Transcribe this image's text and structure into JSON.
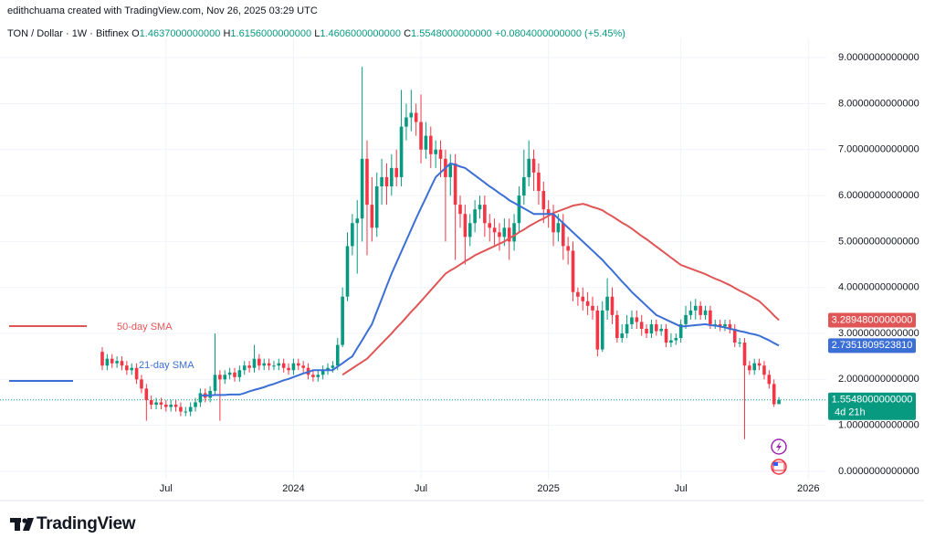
{
  "header": {
    "attribution": "edithchuama created with TradingView.com, Nov 26, 2025 03:29 UTC"
  },
  "chart_data": {
    "type": "candlestick",
    "title": "TON / Dollar · 1W · Bitfinex",
    "ohlc_prefixes": [
      "O",
      "H",
      "L",
      "C"
    ],
    "ohlc_labels": {
      "open": "1.4637000000000",
      "high": "1.6156000000000",
      "low": "1.4606000000000",
      "close": "1.5548000000000",
      "change": "+0.0804000000000",
      "change_percent": "(+5.45%)"
    },
    "categories": [
      null,
      null,
      null,
      null,
      null,
      null,
      null,
      null,
      null,
      null,
      null,
      null,
      null,
      "Jul",
      null,
      null,
      null,
      null,
      null,
      null,
      null,
      null,
      null,
      null,
      null,
      null,
      null,
      null,
      null,
      null,
      null,
      null,
      null,
      null,
      null,
      null,
      null,
      null,
      null,
      "2024",
      null,
      null,
      null,
      null,
      null,
      null,
      null,
      null,
      null,
      null,
      null,
      null,
      null,
      null,
      null,
      null,
      null,
      null,
      null,
      null,
      null,
      null,
      null,
      null,
      null,
      "Jul",
      null,
      null,
      null,
      null,
      null,
      null,
      null,
      null,
      null,
      null,
      null,
      null,
      null,
      null,
      null,
      null,
      null,
      null,
      null,
      null,
      null,
      null,
      null,
      null,
      null,
      "2025",
      null,
      null,
      null,
      null,
      null,
      null,
      null,
      null,
      null,
      null,
      null,
      null,
      null,
      null,
      null,
      null,
      null,
      null,
      null,
      null,
      null,
      null,
      null,
      null,
      null,
      null,
      "Jul",
      null,
      null,
      null,
      null,
      null,
      null,
      null,
      null,
      null,
      null,
      null,
      null,
      null,
      null,
      null,
      null,
      null,
      null,
      null,
      null,
      null,
      null,
      null,
      null,
      null,
      "2026",
      null,
      null,
      null,
      null
    ],
    "open": [
      2.6,
      2.3,
      2.45,
      2.35,
      2.4,
      2.3,
      2.2,
      2.25,
      2.0,
      1.8,
      1.55,
      1.45,
      1.5,
      1.45,
      1.4,
      1.45,
      1.4,
      1.3,
      1.3,
      1.4,
      1.5,
      1.7,
      1.6,
      1.75,
      2.1,
      2.0,
      2.1,
      2.15,
      2.05,
      2.2,
      2.3,
      2.25,
      2.45,
      2.3,
      2.35,
      2.3,
      2.3,
      2.35,
      2.25,
      2.2,
      2.35,
      2.3,
      2.25,
      2.1,
      2.05,
      2.1,
      2.2,
      2.25,
      2.3,
      2.75,
      3.8,
      4.9,
      5.4,
      5.5,
      6.8,
      5.8,
      5.3,
      6.2,
      6.4,
      6.2,
      6.6,
      6.4,
      7.5,
      7.7,
      7.8,
      7.6,
      7.0,
      7.3,
      6.9,
      7.0,
      6.8,
      6.4,
      6.7,
      5.8,
      5.6,
      5.1,
      5.4,
      5.7,
      5.8,
      5.4,
      5.3,
      5.2,
      5.1,
      5.3,
      5.0,
      5.4,
      6.0,
      6.4,
      6.8,
      6.5,
      6.1,
      5.7,
      5.6,
      5.2,
      5.4,
      4.9,
      4.8,
      3.9,
      3.8,
      3.7,
      3.6,
      3.5,
      2.65,
      3.5,
      3.8,
      3.4,
      2.9,
      3.0,
      3.2,
      3.35,
      3.25,
      3.1,
      3.0,
      3.2,
      3.05,
      3.1,
      2.8,
      2.85,
      2.9,
      3.2,
      3.4,
      3.5,
      3.6,
      3.4,
      3.5,
      3.2,
      3.2,
      3.15,
      3.2,
      3.1,
      2.8,
      2.8,
      2.3,
      2.2,
      2.35,
      2.3,
      2.1,
      1.9,
      1.4637,
      null,
      null,
      null,
      null,
      null,
      null,
      null,
      null,
      null,
      null
    ],
    "high": [
      2.7,
      2.55,
      2.55,
      2.5,
      2.5,
      2.4,
      2.35,
      2.35,
      2.1,
      1.9,
      1.65,
      1.6,
      1.6,
      1.55,
      1.55,
      1.55,
      1.5,
      1.4,
      1.5,
      1.6,
      1.8,
      1.8,
      1.85,
      3.0,
      2.2,
      2.2,
      2.25,
      2.25,
      2.3,
      2.4,
      2.4,
      2.75,
      2.55,
      2.45,
      2.45,
      2.4,
      2.45,
      2.45,
      2.35,
      2.45,
      2.45,
      2.4,
      2.35,
      2.2,
      2.2,
      2.3,
      2.35,
      2.4,
      2.9,
      4.0,
      5.2,
      5.6,
      5.9,
      8.8,
      7.2,
      6.4,
      6.5,
      6.8,
      6.7,
      6.9,
      7.0,
      8.3,
      8.0,
      8.3,
      8.0,
      8.2,
      7.6,
      7.5,
      7.2,
      7.2,
      7.0,
      6.9,
      6.9,
      6.0,
      5.8,
      5.6,
      5.9,
      6.0,
      6.0,
      5.6,
      5.5,
      5.4,
      5.5,
      5.5,
      5.6,
      6.2,
      7.0,
      7.2,
      7.0,
      6.7,
      6.3,
      5.9,
      5.8,
      5.6,
      5.6,
      5.1,
      5.0,
      4.0,
      4.0,
      3.9,
      3.8,
      3.6,
      3.7,
      4.2,
      4.0,
      3.5,
      3.2,
      3.4,
      3.5,
      3.5,
      3.4,
      3.2,
      3.3,
      3.3,
      3.2,
      3.2,
      3.0,
      3.0,
      3.3,
      3.6,
      3.7,
      3.75,
      3.7,
      3.6,
      3.6,
      3.3,
      3.3,
      3.3,
      3.3,
      3.2,
      2.9,
      2.9,
      2.4,
      2.45,
      2.45,
      2.4,
      2.2,
      2.0,
      1.6156,
      null,
      null,
      null,
      null,
      null,
      null,
      null,
      null,
      null,
      null
    ],
    "low": [
      2.2,
      2.2,
      2.25,
      2.25,
      2.2,
      2.1,
      2.1,
      1.9,
      1.7,
      1.1,
      1.35,
      1.35,
      1.35,
      1.3,
      1.3,
      1.3,
      1.2,
      1.2,
      1.2,
      1.3,
      1.4,
      1.5,
      1.5,
      1.65,
      1.1,
      1.9,
      2.0,
      1.95,
      1.95,
      2.1,
      2.15,
      2.15,
      2.2,
      2.2,
      2.2,
      2.2,
      2.2,
      2.15,
      2.1,
      2.1,
      2.2,
      2.15,
      2.0,
      1.95,
      1.95,
      2.0,
      2.1,
      2.15,
      2.2,
      2.7,
      3.7,
      4.7,
      4.3,
      5.0,
      4.7,
      5.0,
      5.1,
      5.8,
      5.8,
      6.0,
      6.2,
      6.2,
      7.2,
      7.4,
      7.3,
      6.7,
      6.8,
      6.6,
      6.6,
      6.4,
      5.0,
      6.0,
      4.6,
      5.3,
      4.5,
      4.9,
      5.2,
      5.5,
      5.1,
      5.0,
      4.9,
      4.8,
      4.9,
      4.6,
      4.8,
      5.2,
      5.8,
      6.2,
      6.1,
      5.8,
      5.4,
      5.3,
      4.9,
      5.0,
      4.6,
      4.5,
      3.7,
      3.6,
      3.5,
      3.4,
      3.3,
      2.5,
      2.6,
      3.3,
      3.2,
      2.8,
      2.8,
      2.9,
      3.1,
      3.1,
      2.95,
      2.9,
      2.9,
      2.95,
      2.95,
      2.7,
      2.7,
      2.75,
      2.8,
      3.1,
      3.3,
      3.3,
      3.3,
      3.3,
      3.1,
      3.1,
      3.05,
      3.05,
      3.0,
      2.7,
      2.7,
      0.7,
      2.1,
      2.1,
      2.2,
      2.0,
      1.8,
      1.4,
      1.4606,
      null,
      null,
      null,
      null,
      null,
      null,
      null,
      null,
      null,
      null
    ],
    "close": [
      2.3,
      2.45,
      2.35,
      2.4,
      2.3,
      2.2,
      2.25,
      2.0,
      1.8,
      1.55,
      1.45,
      1.5,
      1.45,
      1.4,
      1.45,
      1.4,
      1.3,
      1.3,
      1.4,
      1.5,
      1.7,
      1.6,
      1.75,
      2.1,
      2.0,
      2.1,
      2.15,
      2.05,
      2.2,
      2.3,
      2.25,
      2.45,
      2.3,
      2.35,
      2.3,
      2.3,
      2.35,
      2.25,
      2.2,
      2.35,
      2.3,
      2.25,
      2.1,
      2.05,
      2.1,
      2.2,
      2.25,
      2.3,
      2.75,
      3.8,
      4.9,
      5.4,
      5.5,
      6.8,
      5.8,
      5.3,
      6.2,
      6.4,
      6.2,
      6.6,
      6.4,
      7.5,
      7.7,
      7.8,
      7.6,
      7.0,
      7.3,
      6.9,
      7.0,
      6.8,
      6.4,
      6.7,
      5.8,
      5.6,
      5.1,
      5.4,
      5.7,
      5.8,
      5.4,
      5.3,
      5.2,
      5.1,
      5.3,
      5.0,
      5.4,
      6.0,
      6.4,
      6.8,
      6.5,
      6.1,
      5.7,
      5.6,
      5.2,
      5.4,
      4.9,
      4.8,
      3.9,
      3.8,
      3.7,
      3.6,
      3.5,
      2.65,
      3.5,
      3.8,
      3.4,
      2.9,
      3.0,
      3.2,
      3.35,
      3.25,
      3.1,
      3.0,
      3.2,
      3.05,
      3.1,
      2.8,
      2.85,
      2.9,
      3.2,
      3.4,
      3.5,
      3.6,
      3.4,
      3.5,
      3.2,
      3.2,
      3.15,
      3.2,
      3.1,
      2.8,
      2.8,
      2.3,
      2.2,
      2.35,
      2.3,
      2.1,
      1.9,
      1.46,
      1.5548,
      null,
      null,
      null,
      null,
      null,
      null,
      null,
      null,
      null,
      null
    ],
    "up_color": "#089981",
    "down_color": "#f23645",
    "last_label": "1.5548000000000",
    "countdown": "4d 21h",
    "series": [
      {
        "name": "50-day SMA",
        "color": "#e05656",
        "last_label": "3.2894800000000",
        "values": [
          null,
          null,
          null,
          null,
          null,
          null,
          null,
          null,
          null,
          null,
          null,
          null,
          null,
          null,
          null,
          null,
          null,
          null,
          null,
          null,
          null,
          null,
          null,
          null,
          null,
          null,
          null,
          null,
          null,
          null,
          null,
          null,
          null,
          null,
          null,
          null,
          null,
          null,
          null,
          null,
          null,
          null,
          null,
          null,
          null,
          null,
          null,
          null,
          null,
          2.1,
          2.17,
          2.24,
          2.31,
          2.38,
          2.45,
          2.56,
          2.67,
          2.78,
          2.89,
          3.0,
          3.12,
          3.23,
          3.35,
          3.47,
          3.58,
          3.7,
          3.82,
          3.94,
          4.06,
          4.18,
          4.3,
          4.37,
          4.43,
          4.5,
          4.57,
          4.63,
          4.7,
          4.75,
          4.8,
          4.85,
          4.9,
          4.95,
          5.0,
          5.07,
          5.13,
          5.2,
          5.26,
          5.33,
          5.39,
          5.45,
          5.5,
          5.56,
          5.62,
          5.66,
          5.7,
          5.74,
          5.78,
          5.8,
          5.82,
          5.79,
          5.75,
          5.72,
          5.68,
          5.61,
          5.55,
          5.48,
          5.41,
          5.35,
          5.28,
          5.2,
          5.12,
          5.05,
          4.97,
          4.89,
          4.81,
          4.73,
          4.65,
          4.57,
          4.49,
          4.45,
          4.41,
          4.37,
          4.33,
          4.29,
          4.24,
          4.19,
          4.15,
          4.1,
          4.05,
          3.99,
          3.93,
          3.88,
          3.82,
          3.76,
          3.7,
          3.6,
          3.5,
          3.39,
          3.28948,
          null,
          null,
          null,
          null,
          null,
          null,
          null,
          null,
          null,
          null
        ]
      },
      {
        "name": "21-day SMA",
        "color": "#3c6fd6",
        "last_label": "2.7351809523810",
        "values": [
          null,
          null,
          null,
          null,
          null,
          null,
          null,
          null,
          null,
          null,
          null,
          null,
          null,
          null,
          null,
          null,
          null,
          null,
          null,
          null,
          1.65,
          1.65,
          1.65,
          1.66,
          1.66,
          1.66,
          1.67,
          1.67,
          1.67,
          1.7,
          1.74,
          1.77,
          1.8,
          1.83,
          1.87,
          1.9,
          1.94,
          1.98,
          2.01,
          2.05,
          2.09,
          2.13,
          2.16,
          2.2,
          2.2,
          2.2,
          2.2,
          2.2,
          2.28,
          2.35,
          2.43,
          2.5,
          2.68,
          2.85,
          3.03,
          3.2,
          3.48,
          3.75,
          4.03,
          4.3,
          4.54,
          4.78,
          5.02,
          5.26,
          5.5,
          5.73,
          5.95,
          6.18,
          6.4,
          6.5,
          6.6,
          6.7,
          6.67,
          6.63,
          6.6,
          6.52,
          6.44,
          6.36,
          6.28,
          6.2,
          6.13,
          6.05,
          5.98,
          5.9,
          5.84,
          5.78,
          5.72,
          5.66,
          5.6,
          5.6,
          5.6,
          5.6,
          5.6,
          5.5,
          5.4,
          5.3,
          5.2,
          5.1,
          5.0,
          4.9,
          4.8,
          4.7,
          4.6,
          4.48,
          4.37,
          4.25,
          4.13,
          4.02,
          3.9,
          3.8,
          3.7,
          3.6,
          3.5,
          3.4,
          3.35,
          3.3,
          3.25,
          3.2,
          3.15,
          3.16,
          3.17,
          3.18,
          3.19,
          3.2,
          3.18,
          3.17,
          3.15,
          3.13,
          3.1,
          3.08,
          3.05,
          3.03,
          3.0,
          2.98,
          2.95,
          2.9,
          2.85,
          2.79,
          2.735180952381,
          null,
          null,
          null,
          null,
          null,
          null,
          null,
          null,
          null,
          null
        ]
      }
    ],
    "ylim": [
      -0.18,
      9.42
    ],
    "yticks": [
      {
        "value": 0,
        "label": "0.0000000000000"
      },
      {
        "value": 1,
        "label": "1.0000000000000"
      },
      {
        "value": 2,
        "label": "2.0000000000000"
      },
      {
        "value": 3,
        "label": "3.0000000000000"
      },
      {
        "value": 4,
        "label": "4.0000000000000"
      },
      {
        "value": 5,
        "label": "5.0000000000000"
      },
      {
        "value": 6,
        "label": "6.0000000000000"
      },
      {
        "value": 7,
        "label": "7.0000000000000"
      },
      {
        "value": 8,
        "label": "8.0000000000000"
      },
      {
        "value": 9,
        "label": "9.0000000000000"
      }
    ],
    "grid": true
  },
  "footer": {
    "logo": "TradingView"
  }
}
